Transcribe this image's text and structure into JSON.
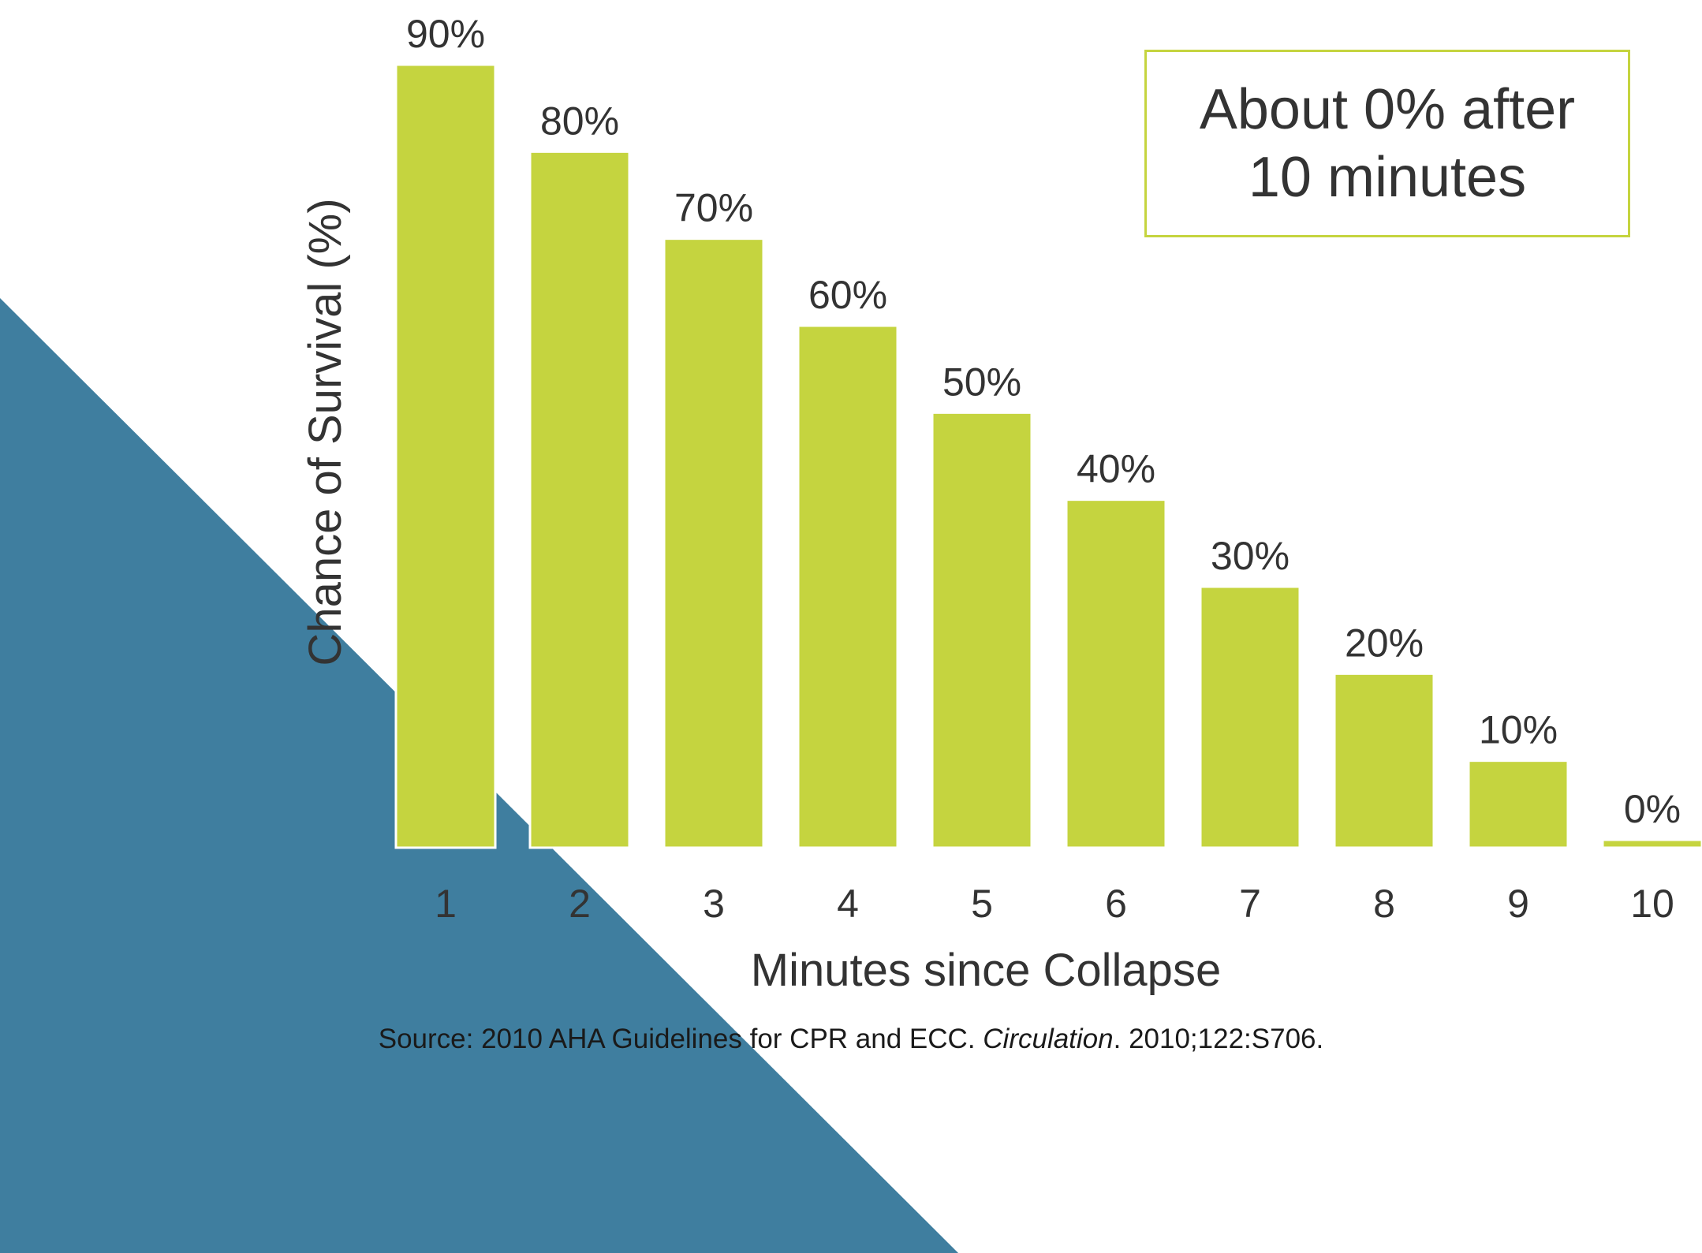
{
  "chart_data": {
    "type": "bar",
    "categories": [
      "1",
      "2",
      "3",
      "4",
      "5",
      "6",
      "7",
      "8",
      "9",
      "10"
    ],
    "values": [
      90,
      80,
      70,
      60,
      50,
      40,
      30,
      20,
      10,
      0
    ],
    "value_labels": [
      "90%",
      "80%",
      "70%",
      "60%",
      "50%",
      "40%",
      "30%",
      "20%",
      "10%",
      "0%"
    ],
    "title": "",
    "xlabel": "Minutes since Collapse",
    "ylabel": "Chance of Survival (%)",
    "ylim": [
      0,
      90
    ],
    "grid": false,
    "legend": "none",
    "annotation": "About 0% after 10 minutes"
  },
  "source": {
    "prefix": "Source: 2010 AHA Guidelines for CPR and ECC. ",
    "journal": "Circulation",
    "suffix": ". 2010;122:S706."
  },
  "colors": {
    "bar": "#c5d43f",
    "background_shape": "#3f7e9f",
    "text": "#333333"
  }
}
